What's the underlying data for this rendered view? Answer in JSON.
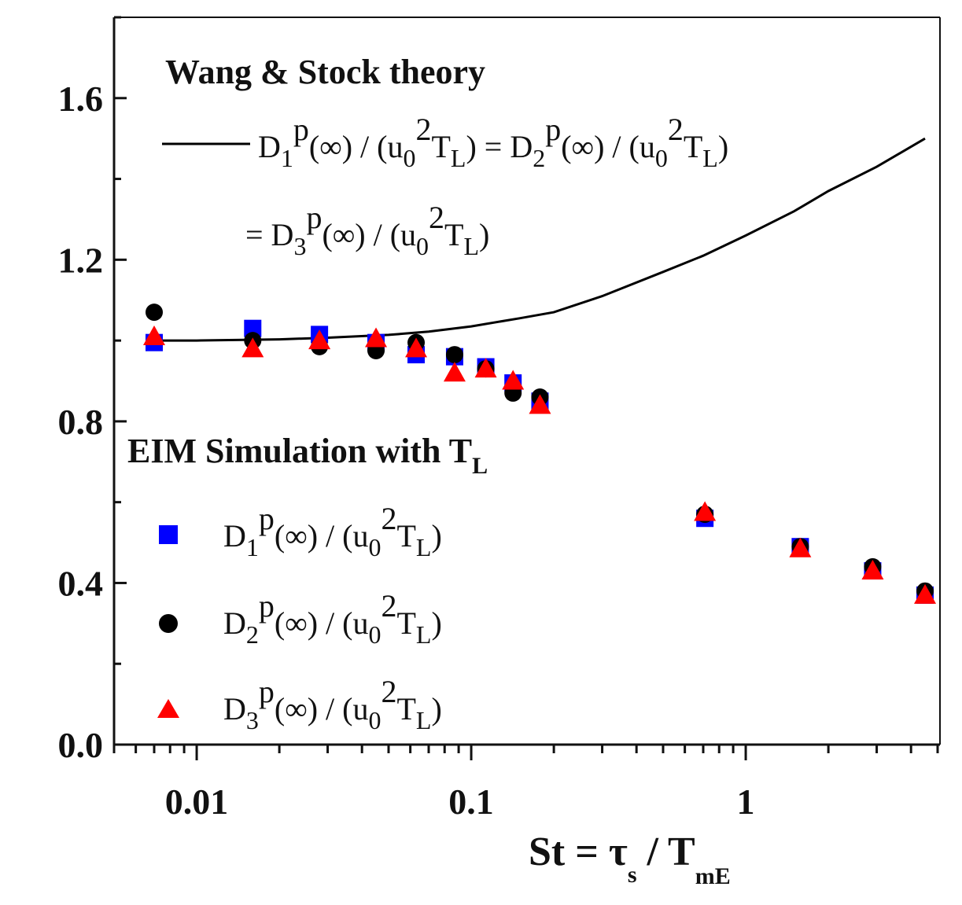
{
  "chart_data": {
    "type": "scatter",
    "x_scale": "log",
    "xlim": [
      0.005,
      5.1
    ],
    "ylim": [
      0.0,
      1.8
    ],
    "x_ticks": [
      {
        "value": 0.01,
        "label": "0.01"
      },
      {
        "value": 0.1,
        "label": "0.1"
      },
      {
        "value": 1,
        "label": "1"
      }
    ],
    "y_ticks": [
      {
        "value": 0.0,
        "label": "0.0"
      },
      {
        "value": 0.4,
        "label": "0.4"
      },
      {
        "value": 0.8,
        "label": "0.8"
      },
      {
        "value": 1.2,
        "label": "1.2"
      },
      {
        "value": 1.6,
        "label": "1.6"
      }
    ],
    "xlabel": {
      "main": "St = τ",
      "sub1": "s",
      "mid": " / T",
      "sub2": "mE"
    },
    "ylabel": "",
    "legend_theory": {
      "title": "Wang & Stock  theory",
      "line1": {
        "a": "D",
        "a_sub": "1",
        "b": "p",
        "c": "(∞) / (u",
        "c_sub": "0",
        "d": "2",
        "e": "T",
        "e_sub": "L",
        "f": ") = D",
        "f_sub": "2",
        "g": "p",
        "h": "(∞) / (u",
        "h_sub": "0",
        "i": "2",
        "j": "T",
        "j_sub": "L",
        "k": ")"
      },
      "line2": {
        "a": "= D",
        "a_sub": "3",
        "b": "p",
        "c": "(∞) / (u",
        "c_sub": "0",
        "d": "2",
        "e": "T",
        "e_sub": "L",
        "f": ")"
      }
    },
    "legend_sim": {
      "title": "EIM Simulation with T",
      "title_sub": "L",
      "entries": [
        {
          "name": "D1",
          "d": "D",
          "d_sub": "1",
          "p": "p",
          "c": "(∞) / (u",
          "c_sub": "0",
          "sq": "2",
          "t": "T",
          "t_sub": "L",
          "end": ")"
        },
        {
          "name": "D2",
          "d": "D",
          "d_sub": "2",
          "p": "p",
          "c": "(∞) / (u",
          "c_sub": "0",
          "sq": "2",
          "t": "T",
          "t_sub": "L",
          "end": ")"
        },
        {
          "name": "D3",
          "d": "D",
          "d_sub": "3",
          "p": "p",
          "c": "(∞) / (u",
          "c_sub": "0",
          "sq": "2",
          "t": "T",
          "t_sub": "L",
          "end": ")"
        }
      ]
    },
    "theory_curve": {
      "name": "Wang & Stock theory",
      "color": "#000000",
      "x": [
        0.007,
        0.01,
        0.02,
        0.03,
        0.05,
        0.07,
        0.1,
        0.15,
        0.2,
        0.3,
        0.5,
        0.7,
        1.0,
        1.5,
        2.0,
        3.0,
        4.5
      ],
      "y": [
        1.0,
        1.0,
        1.003,
        1.007,
        1.014,
        1.022,
        1.035,
        1.055,
        1.07,
        1.11,
        1.17,
        1.21,
        1.26,
        1.32,
        1.37,
        1.43,
        1.5
      ]
    },
    "series": [
      {
        "name": "D1p(∞)/(u0²TL)",
        "marker": "square",
        "color": "#0000ff",
        "x": [
          0.007,
          0.016,
          0.028,
          0.045,
          0.063,
          0.087,
          0.113,
          0.142,
          0.178,
          0.71,
          1.58,
          2.9,
          4.5
        ],
        "y": [
          0.995,
          1.03,
          1.015,
          0.995,
          0.965,
          0.96,
          0.935,
          0.895,
          0.85,
          0.56,
          0.49,
          0.43,
          0.37
        ]
      },
      {
        "name": "D2p(∞)/(u0²TL)",
        "marker": "circle",
        "color": "#000000",
        "x": [
          0.007,
          0.016,
          0.028,
          0.045,
          0.063,
          0.087,
          0.113,
          0.142,
          0.178,
          0.71,
          1.58,
          2.9,
          4.5
        ],
        "y": [
          1.07,
          1.0,
          0.985,
          0.975,
          0.995,
          0.965,
          0.93,
          0.87,
          0.86,
          0.57,
          0.49,
          0.44,
          0.38
        ]
      },
      {
        "name": "D3p(∞)/(u0²TL)",
        "marker": "triangle",
        "color": "#ff0000",
        "x": [
          0.007,
          0.016,
          0.028,
          0.045,
          0.063,
          0.087,
          0.113,
          0.142,
          0.178,
          0.71,
          1.58,
          2.9,
          4.5
        ],
        "y": [
          1.01,
          0.98,
          1.0,
          1.005,
          0.98,
          0.92,
          0.93,
          0.9,
          0.84,
          0.575,
          0.485,
          0.43,
          0.37
        ]
      }
    ]
  }
}
